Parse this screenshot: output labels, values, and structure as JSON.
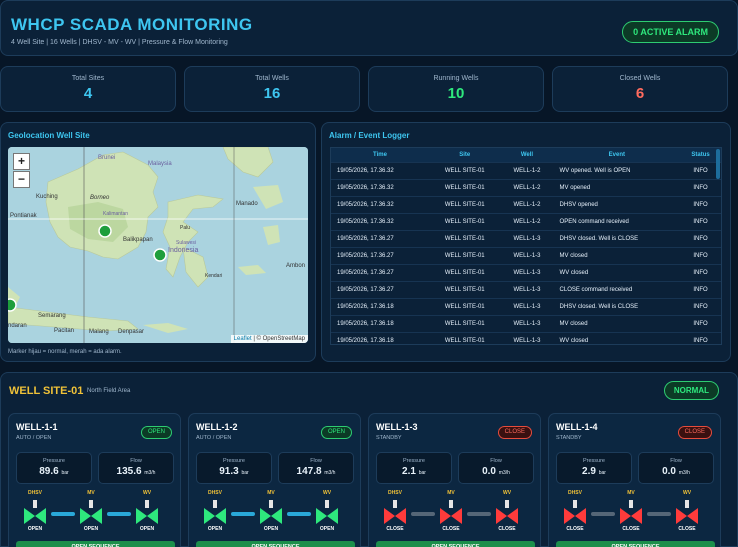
{
  "header": {
    "title": "WHCP SCADA MONITORING",
    "subtitle": "4 Well Site | 16 Wells | DHSV - MV - WV | Pressure & Flow Monitoring",
    "alarm_badge": "0 ACTIVE ALARM"
  },
  "stats": [
    {
      "label": "Total Sites",
      "value": "4",
      "color": "#3ec6f0"
    },
    {
      "label": "Total Wells",
      "value": "16",
      "color": "#3ec6f0"
    },
    {
      "label": "Running Wells",
      "value": "10",
      "color": "#2ee87d"
    },
    {
      "label": "Closed Wells",
      "value": "6",
      "color": "#ff6b5e"
    }
  ],
  "map": {
    "title": "Geolocation Well Site",
    "zoom_in": "+",
    "zoom_out": "−",
    "attribution_leaflet": "Leaflet",
    "attribution_osm": "| © OpenStreetMap",
    "note": "Marker hijau = normal, merah = ada alarm.",
    "place_labels": {
      "kuching": "Kuching",
      "brunei": "Brunei",
      "malaysia": "Malaysia",
      "borneo": "Borneo",
      "pontianak": "Pontianak",
      "kalimantan": "Kalimantan",
      "balikpapan": "Balikpapan",
      "sulawesi": "Sulawesi",
      "indonesia": "Indonesia",
      "manado": "Manado",
      "palu": "Palu",
      "kendari": "Kendari",
      "semarang": "Semarang",
      "malang": "Malang",
      "denpasar": "Denpasar",
      "pacitan": "Pacitan",
      "ambon": "Ambon",
      "ndarari": "ndaran"
    }
  },
  "alarm_log": {
    "title": "Alarm / Event Logger",
    "columns": [
      "Time",
      "Site",
      "Well",
      "Event",
      "Status"
    ],
    "rows": [
      [
        "19/05/2026, 17.36.32",
        "WELL SITE-01",
        "WELL-1-2",
        "WV opened. Well is OPEN",
        "INFO"
      ],
      [
        "19/05/2026, 17.36.32",
        "WELL SITE-01",
        "WELL-1-2",
        "MV opened",
        "INFO"
      ],
      [
        "19/05/2026, 17.36.32",
        "WELL SITE-01",
        "WELL-1-2",
        "DHSV opened",
        "INFO"
      ],
      [
        "19/05/2026, 17.36.32",
        "WELL SITE-01",
        "WELL-1-2",
        "OPEN command received",
        "INFO"
      ],
      [
        "19/05/2026, 17.36.27",
        "WELL SITE-01",
        "WELL-1-3",
        "DHSV closed. Well is CLOSE",
        "INFO"
      ],
      [
        "19/05/2026, 17.36.27",
        "WELL SITE-01",
        "WELL-1-3",
        "MV closed",
        "INFO"
      ],
      [
        "19/05/2026, 17.36.27",
        "WELL SITE-01",
        "WELL-1-3",
        "WV closed",
        "INFO"
      ],
      [
        "19/05/2026, 17.36.27",
        "WELL SITE-01",
        "WELL-1-3",
        "CLOSE command received",
        "INFO"
      ],
      [
        "19/05/2026, 17.36.18",
        "WELL SITE-01",
        "WELL-1-3",
        "DHSV closed. Well is CLOSE",
        "INFO"
      ],
      [
        "19/05/2026, 17.36.18",
        "WELL SITE-01",
        "WELL-1-3",
        "MV closed",
        "INFO"
      ],
      [
        "19/05/2026, 17.36.18",
        "WELL SITE-01",
        "WELL-1-3",
        "WV closed",
        "INFO"
      ]
    ]
  },
  "site": {
    "title": "WELL SITE-01",
    "area": "North Field Area",
    "status": "NORMAL",
    "valve_names": [
      "DHSV",
      "MV",
      "WV"
    ],
    "pressure_label": "Pressure",
    "flow_label": "Flow",
    "pressure_unit": "bar",
    "flow_unit": "m3/h",
    "wells": [
      {
        "name": "WELL-1-1",
        "mode": "AUTO / OPEN",
        "badge": "OPEN",
        "pressure": "89.6",
        "flow": "135.6",
        "valves": [
          "OPEN",
          "OPEN",
          "OPEN"
        ],
        "button": "OPEN SEQUENCE"
      },
      {
        "name": "WELL-1-2",
        "mode": "AUTO / OPEN",
        "badge": "OPEN",
        "pressure": "91.3",
        "flow": "147.8",
        "valves": [
          "OPEN",
          "OPEN",
          "OPEN"
        ],
        "button": "OPEN SEQUENCE"
      },
      {
        "name": "WELL-1-3",
        "mode": "STANDBY",
        "badge": "CLOSE",
        "pressure": "2.1",
        "flow": "0.0",
        "valves": [
          "CLOSE",
          "CLOSE",
          "CLOSE"
        ],
        "button": "OPEN SEQUENCE"
      },
      {
        "name": "WELL-1-4",
        "mode": "STANDBY",
        "badge": "CLOSE",
        "pressure": "2.9",
        "flow": "0.0",
        "valves": [
          "CLOSE",
          "CLOSE",
          "CLOSE"
        ],
        "button": "OPEN SEQUENCE"
      }
    ]
  }
}
